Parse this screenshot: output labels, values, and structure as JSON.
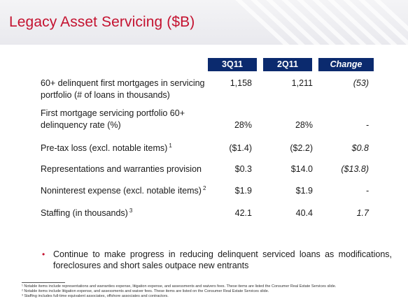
{
  "title": "Legacy Asset Servicing ($B)",
  "columns": {
    "c1": "3Q11",
    "c2": "2Q11",
    "c3": "Change"
  },
  "rows": [
    {
      "label_line1": "60+ delinquent first mortgages in servicing",
      "label_line2": "portfolio (# of loans in thousands)",
      "sup": "",
      "v1": "1,158",
      "v2": "1,211",
      "v3": "(53)"
    },
    {
      "label_line1": "First mortgage servicing portfolio 60+",
      "label_line2": "delinquency rate (%)",
      "sup": "",
      "v1": "28%",
      "v2": "28%",
      "v3": "-"
    },
    {
      "label_line1": "Pre-tax loss (excl. notable items)",
      "label_line2": "",
      "sup": "1",
      "v1": "($1.4)",
      "v2": "($2.2)",
      "v3": "$0.8"
    },
    {
      "label_line1": "Representations and warranties provision",
      "label_line2": "",
      "sup": "",
      "v1": "$0.3",
      "v2": "$14.0",
      "v3": "($13.8)"
    },
    {
      "label_line1": "Noninterest expense (excl. notable items)",
      "label_line2": "",
      "sup": "2",
      "v1": "$1.9",
      "v2": "$1.9",
      "v3": "-"
    },
    {
      "label_line1": "Staffing (in thousands)",
      "label_line2": "",
      "sup": "3",
      "v1": "42.1",
      "v2": "40.4",
      "v3": "1.7"
    }
  ],
  "bullet": "Continue to make progress in reducing delinquent serviced loans as modifications, foreclosures and short sales outpace new entrants",
  "footnotes": [
    "¹ Notable items include representations and warranties expense, litigation expense, and assessments and waivers fees. These items are listed the Consumer Real Estate Services slide.",
    "² Notable items include litigation expense, and assessments and waiver fees. These items are listed on the Consumer Real Estate Services slide.",
    "³ Staffing includes full-time equivalent associates, offshore associates and contractors."
  ],
  "colors": {
    "title": "#c41230",
    "header_fill": "#0b2a6e",
    "bullet": "#c41230"
  }
}
